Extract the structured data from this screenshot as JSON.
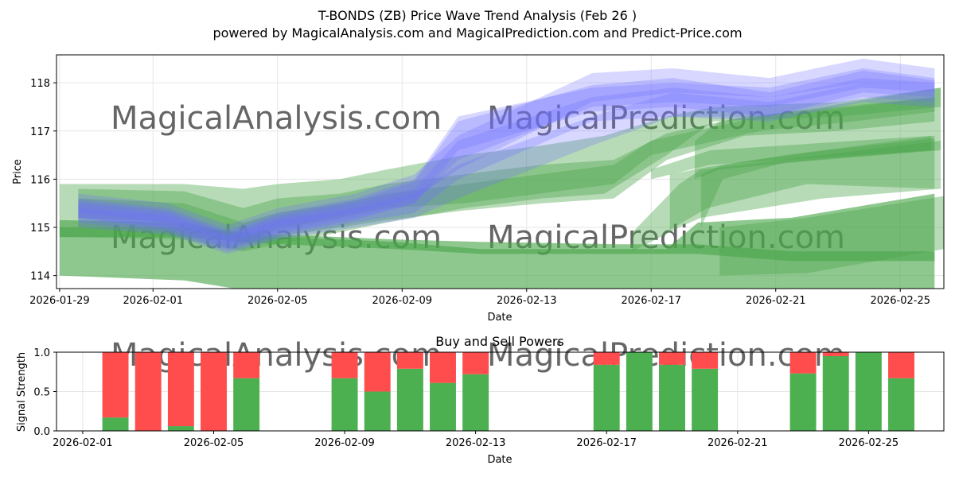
{
  "title_line1": "T-BONDS (ZB) Price Wave Trend Analysis (Feb 26 )",
  "title_line2": "powered by MagicalAnalysis.com and MagicalPrediction.com and Predict-Price.com",
  "watermarks": [
    "MagicalAnalysis.com",
    "MagicalPrediction.com"
  ],
  "colors": {
    "blue_band": "#6f6fff",
    "green_band": "#4aa64a",
    "buy": "#4caf50",
    "sell": "#ff4c4c",
    "grid": "#e6e6e6",
    "watermark": "#d9d9d9"
  },
  "chart_data": [
    {
      "type": "area",
      "title": "",
      "xlabel": "Date",
      "ylabel": "Price",
      "x_ticks": [
        "2026-01-29",
        "2026-02-01",
        "2026-02-05",
        "2026-02-09",
        "2026-02-13",
        "2026-02-17",
        "2026-02-21",
        "2026-02-25"
      ],
      "x_range_days": [
        -0.1,
        28.4
      ],
      "ylim": [
        113.73,
        118.58
      ],
      "y_ticks": [
        114,
        115,
        116,
        117,
        118
      ],
      "grid": true,
      "blue_bands": [
        {
          "x": [
            0.6,
            3.5,
            5.4,
            7,
            9.5,
            11.4,
            12.8,
            17.1,
            19.7,
            22.8,
            25.8,
            28.1
          ],
          "lower": [
            115.2,
            115.0,
            114.6,
            114.9,
            115.2,
            115.5,
            116.4,
            117.5,
            117.6,
            117.5,
            117.9,
            117.8
          ],
          "upper": [
            115.6,
            115.4,
            114.95,
            115.3,
            115.6,
            116.0,
            117.3,
            117.9,
            118.0,
            117.9,
            118.3,
            118.1
          ]
        },
        {
          "x": [
            0.6,
            3.5,
            5.4,
            7,
            9.5,
            11.4,
            12.8,
            17.1,
            19.7,
            22.8,
            25.8,
            28.1
          ],
          "lower": [
            115.1,
            114.9,
            114.5,
            114.8,
            115.1,
            115.3,
            116.0,
            117.2,
            117.3,
            117.3,
            117.7,
            117.6
          ],
          "upper": [
            115.5,
            115.3,
            114.85,
            115.2,
            115.5,
            115.8,
            116.8,
            117.7,
            117.9,
            117.7,
            118.1,
            118.0
          ]
        },
        {
          "x": [
            0.6,
            3.5,
            5.4,
            7,
            9.5,
            11.4,
            12.8,
            17.1,
            19.7,
            22.8,
            25.8,
            28.1
          ],
          "lower": [
            115.3,
            115.1,
            114.7,
            115.0,
            115.3,
            115.6,
            116.2,
            117.6,
            117.8,
            117.7,
            118.0,
            117.9
          ],
          "upper": [
            115.7,
            115.5,
            115.05,
            115.4,
            115.7,
            116.1,
            116.9,
            118.2,
            118.3,
            118.1,
            118.5,
            118.3
          ]
        },
        {
          "x": [
            0.6,
            3.5,
            5.4,
            7,
            9.5,
            11.4,
            12.8,
            17.1,
            19.7,
            22.8,
            25.8,
            28.1
          ],
          "lower": [
            115.0,
            114.85,
            114.45,
            114.75,
            115.0,
            115.2,
            115.6,
            116.7,
            117.3,
            117.2,
            117.6,
            117.5
          ],
          "upper": [
            115.4,
            115.25,
            114.8,
            115.15,
            115.4,
            115.7,
            116.3,
            117.3,
            117.8,
            117.6,
            118.0,
            117.9
          ]
        },
        {
          "x": [
            0.6,
            3.5,
            5.4,
            7,
            9.5,
            11.4,
            12.8,
            17.1,
            19.7,
            22.8,
            25.8,
            28.1
          ],
          "lower": [
            115.2,
            114.95,
            114.55,
            114.85,
            115.15,
            115.5,
            116.6,
            117.4,
            117.5,
            117.3,
            117.8,
            117.7
          ],
          "upper": [
            115.55,
            115.35,
            114.9,
            115.25,
            115.55,
            115.95,
            117.2,
            117.95,
            118.1,
            117.8,
            118.25,
            118.05
          ]
        }
      ],
      "green_bands": [
        {
          "x": [
            0,
            4,
            5.9,
            7,
            9,
            10.8,
            13.5,
            17.8,
            20.5,
            23.5,
            28.1
          ],
          "lower": [
            114.8,
            114.8,
            114.7,
            114.65,
            114.6,
            114.55,
            114.45,
            114.45,
            114.45,
            114.3,
            114.3
          ],
          "upper": [
            115.0,
            115.0,
            114.9,
            114.85,
            114.8,
            114.75,
            114.7,
            114.65,
            114.65,
            114.5,
            114.5
          ]
        },
        {
          "x": [
            0,
            4,
            5.9,
            7,
            9,
            10.8,
            13.5,
            17.8,
            19.5,
            20.5,
            23.5,
            28.1
          ],
          "lower": [
            114.0,
            113.9,
            113.7,
            113.7,
            113.7,
            113.7,
            113.7,
            113.7,
            113.7,
            113.73,
            113.73,
            113.73
          ],
          "upper": [
            115.15,
            115.1,
            114.85,
            114.8,
            114.75,
            114.7,
            114.55,
            114.55,
            114.55,
            115.1,
            115.2,
            115.7
          ]
        },
        {
          "x": [
            21.2,
            24.0,
            28.4
          ],
          "lower": [
            114.0,
            114.05,
            114.55
          ],
          "upper": [
            115.0,
            115.2,
            115.65
          ]
        },
        {
          "x": [
            0,
            4,
            5.9,
            7,
            9,
            10.5,
            13,
            15.5,
            17.5,
            19.5,
            21,
            25,
            28.3
          ],
          "lower": [
            114.8,
            114.75,
            114.5,
            114.65,
            114.9,
            115.1,
            115.4,
            115.6,
            115.7,
            116.5,
            117.2,
            117.3,
            117.5
          ],
          "upper": [
            115.9,
            115.9,
            115.8,
            115.9,
            116.0,
            116.2,
            116.5,
            116.7,
            116.9,
            117.3,
            117.5,
            117.6,
            117.9
          ]
        },
        {
          "x": [
            0.6,
            4,
            5.9,
            7,
            9,
            10.5,
            13,
            15.5,
            17.8,
            19.5,
            22,
            25,
            28.1
          ],
          "lower": [
            115.0,
            114.95,
            114.65,
            114.8,
            115.0,
            115.15,
            115.35,
            115.5,
            115.6,
            116.4,
            116.9,
            117.0,
            117.2
          ],
          "upper": [
            115.8,
            115.75,
            115.4,
            115.6,
            115.7,
            115.9,
            116.1,
            116.3,
            116.4,
            116.95,
            117.3,
            117.5,
            117.7
          ]
        },
        {
          "x": [
            0.6,
            4,
            5.9,
            7,
            9,
            10.5,
            13,
            17.8,
            19,
            22.5,
            25.5,
            28.1
          ],
          "lower": [
            115.2,
            115.1,
            114.7,
            114.95,
            115.2,
            115.4,
            115.5,
            115.9,
            116.5,
            117.0,
            117.2,
            117.4
          ],
          "upper": [
            115.6,
            115.5,
            115.1,
            115.3,
            115.5,
            115.7,
            115.9,
            116.3,
            116.8,
            117.3,
            117.5,
            117.7
          ]
        },
        {
          "x": [
            18.4,
            19.9,
            20.6,
            24.5,
            28.3
          ],
          "lower": [
            114.5,
            115.0,
            115.2,
            115.6,
            115.8
          ],
          "upper": [
            114.9,
            115.9,
            116.2,
            116.5,
            116.8
          ]
        },
        {
          "x": [
            19.0,
            20.9,
            28.0
          ],
          "lower": [
            116.0,
            116.3,
            116.6
          ],
          "upper": [
            116.2,
            116.6,
            116.9
          ]
        },
        {
          "x": [
            20.6,
            21.3,
            23.3,
            28.1
          ],
          "lower": [
            115.0,
            116.0,
            116.35,
            116.6
          ],
          "upper": [
            116.1,
            116.3,
            116.5,
            116.9
          ]
        },
        {
          "x": [
            19.6,
            20.8,
            24,
            28.1
          ],
          "lower": [
            114.95,
            115.4,
            115.9,
            115.8
          ],
          "upper": [
            116.1,
            116.25,
            116.55,
            116.85
          ]
        },
        {
          "x": [
            20.4,
            21.2,
            24.5,
            28.3
          ],
          "lower": [
            116.0,
            116.2,
            116.4,
            116.6
          ],
          "upper": [
            116.8,
            117.2,
            117.5,
            117.9
          ]
        }
      ]
    },
    {
      "type": "bar",
      "title": "Buy and Sell Powers",
      "xlabel": "Date",
      "ylabel": "Signal Strength",
      "ylim": [
        0,
        1.0
      ],
      "y_ticks": [
        "0.0",
        "0.5",
        "1.0"
      ],
      "x_ticks": [
        "2026-02-01",
        "2026-02-05",
        "2026-02-09",
        "2026-02-13",
        "2026-02-17",
        "2026-02-21",
        "2026-02-25"
      ],
      "x_range_days": [
        -0.8,
        26.3
      ],
      "grid": true,
      "series": [
        {
          "name": "Buy",
          "x_days": [
            1,
            2,
            3,
            4,
            5,
            8,
            9,
            10,
            11,
            12,
            16,
            17,
            18,
            19,
            22,
            23,
            24,
            25
          ],
          "values": [
            0.17,
            0.0,
            0.06,
            0.0,
            0.67,
            0.67,
            0.5,
            0.79,
            0.61,
            0.72,
            0.84,
            1.0,
            0.84,
            0.79,
            0.73,
            0.95,
            1.0,
            0.67
          ]
        },
        {
          "name": "Sell",
          "x_days": [
            1,
            2,
            3,
            4,
            5,
            8,
            9,
            10,
            11,
            12,
            16,
            17,
            18,
            19,
            22,
            23,
            24,
            25
          ],
          "values": [
            0.83,
            1.0,
            0.94,
            1.0,
            0.33,
            0.33,
            0.5,
            0.21,
            0.39,
            0.28,
            0.16,
            0.0,
            0.16,
            0.21,
            0.27,
            0.05,
            0.0,
            0.33
          ]
        }
      ]
    }
  ]
}
